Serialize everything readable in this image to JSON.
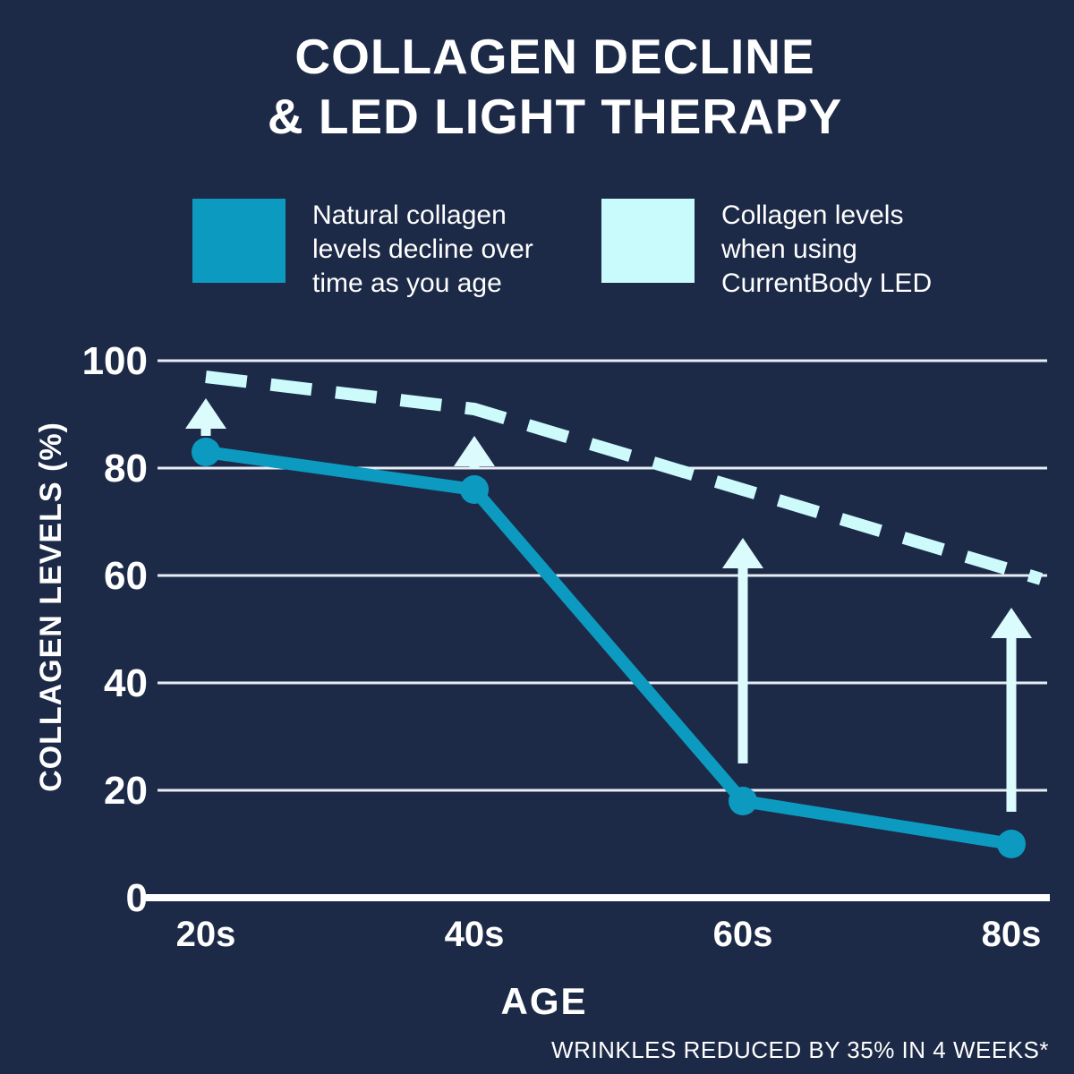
{
  "title": {
    "line1": "COLLAGEN DECLINE",
    "line2": "& LED LIGHT THERAPY"
  },
  "legend_items": [
    {
      "label": "Natural collagen levels decline over time as you age",
      "swatch_color": "#0d9ac0"
    },
    {
      "label": "Collagen levels when using CurrentBody LED",
      "swatch_color": "#c9fbfd"
    }
  ],
  "axes": {
    "x_title": "AGE",
    "y_title": "COLLAGEN LEVELS (%)"
  },
  "footnote": "WRINKLES REDUCED BY 35% IN 4 WEEKS*",
  "colors": {
    "background": "#1c2a47",
    "gridline": "#e8edf4",
    "axis_line": "#ffffff",
    "text": "#ffffff",
    "natural_line": "#0d9ac0",
    "led_line": "#cdfbfc",
    "arrow": "#dcfbfc"
  },
  "chart_data": {
    "type": "line",
    "title": "COLLAGEN DECLINE & LED LIGHT THERAPY",
    "xlabel": "AGE",
    "ylabel": "COLLAGEN LEVELS (%)",
    "categories": [
      "20s",
      "40s",
      "60s",
      "80s"
    ],
    "series": [
      {
        "name": "Natural collagen levels decline over time as you age",
        "style": "solid",
        "color": "#0d9ac0",
        "markers": true,
        "values": [
          83,
          76,
          18,
          10
        ]
      },
      {
        "name": "Collagen levels when using CurrentBody LED",
        "style": "dashed",
        "color": "#cdfbfc",
        "markers": false,
        "values": [
          97,
          91,
          76,
          61
        ]
      }
    ],
    "improvement_arrows": [
      {
        "at": "20s",
        "from": 86,
        "to": 93
      },
      {
        "at": "40s",
        "from": 80,
        "to": 86
      },
      {
        "at": "60s",
        "from": 25,
        "to": 67
      },
      {
        "at": "80s",
        "from": 16,
        "to": 54
      }
    ],
    "ylim": [
      0,
      100
    ],
    "yticks": [
      0,
      20,
      40,
      60,
      80,
      100
    ],
    "grid": "horizontal",
    "legend_position": "top",
    "annotation": "WRINKLES REDUCED BY 35% IN 4 WEEKS*"
  }
}
